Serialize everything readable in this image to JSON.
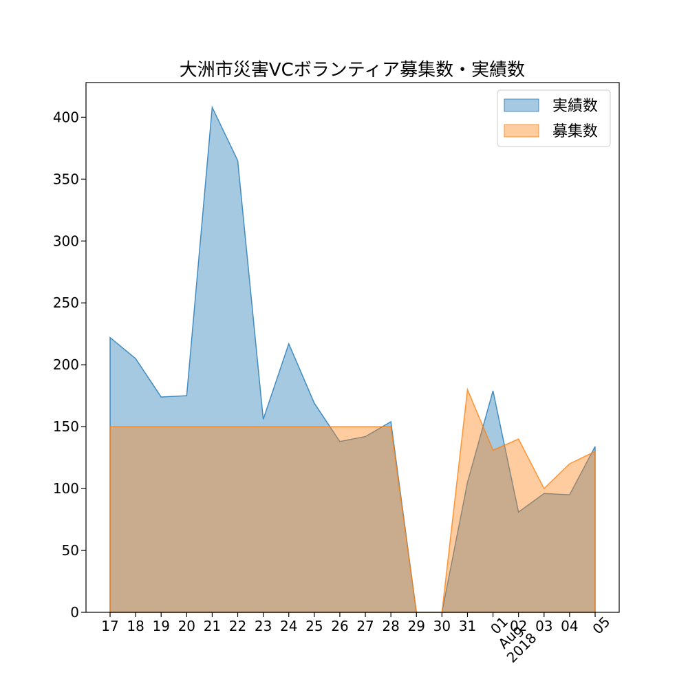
{
  "chart_data": {
    "type": "area",
    "title": "大洲市災害VCボランティア募集数・実績数",
    "xlabel": "",
    "ylabel": "",
    "ylim": [
      0,
      428
    ],
    "yticks": [
      0,
      50,
      100,
      150,
      200,
      250,
      300,
      350,
      400
    ],
    "x": [
      "2018-07-17",
      "2018-07-18",
      "2018-07-19",
      "2018-07-20",
      "2018-07-21",
      "2018-07-22",
      "2018-07-23",
      "2018-07-24",
      "2018-07-25",
      "2018-07-26",
      "2018-07-27",
      "2018-07-28",
      "2018-07-29",
      "2018-07-30",
      "2018-07-31",
      "2018-08-01",
      "2018-08-02",
      "2018-08-03",
      "2018-08-04",
      "2018-08-05"
    ],
    "xtick_labels": [
      "17",
      "18",
      "19",
      "20",
      "21",
      "22",
      "23",
      "24",
      "25",
      "26",
      "27",
      "28",
      "29",
      "30",
      "31",
      "01\nAug\n2018",
      "02",
      "03",
      "04",
      "05"
    ],
    "rotated_xticks": [
      "01\nAug\n2018",
      "05"
    ],
    "grid": false,
    "legend_position": "top-right",
    "series": [
      {
        "name": "実績数",
        "color": "#1f77b4",
        "alpha": 0.4,
        "values": [
          222,
          205,
          174,
          175,
          408,
          365,
          156,
          217,
          169,
          138,
          142,
          154,
          0,
          0,
          105,
          179,
          81,
          96,
          95,
          134
        ]
      },
      {
        "name": "募集数",
        "color": "#ff7f0e",
        "alpha": 0.4,
        "values": [
          150,
          150,
          150,
          150,
          150,
          150,
          150,
          150,
          150,
          150,
          150,
          150,
          0,
          0,
          180,
          131,
          140,
          100,
          120,
          130
        ]
      }
    ]
  }
}
